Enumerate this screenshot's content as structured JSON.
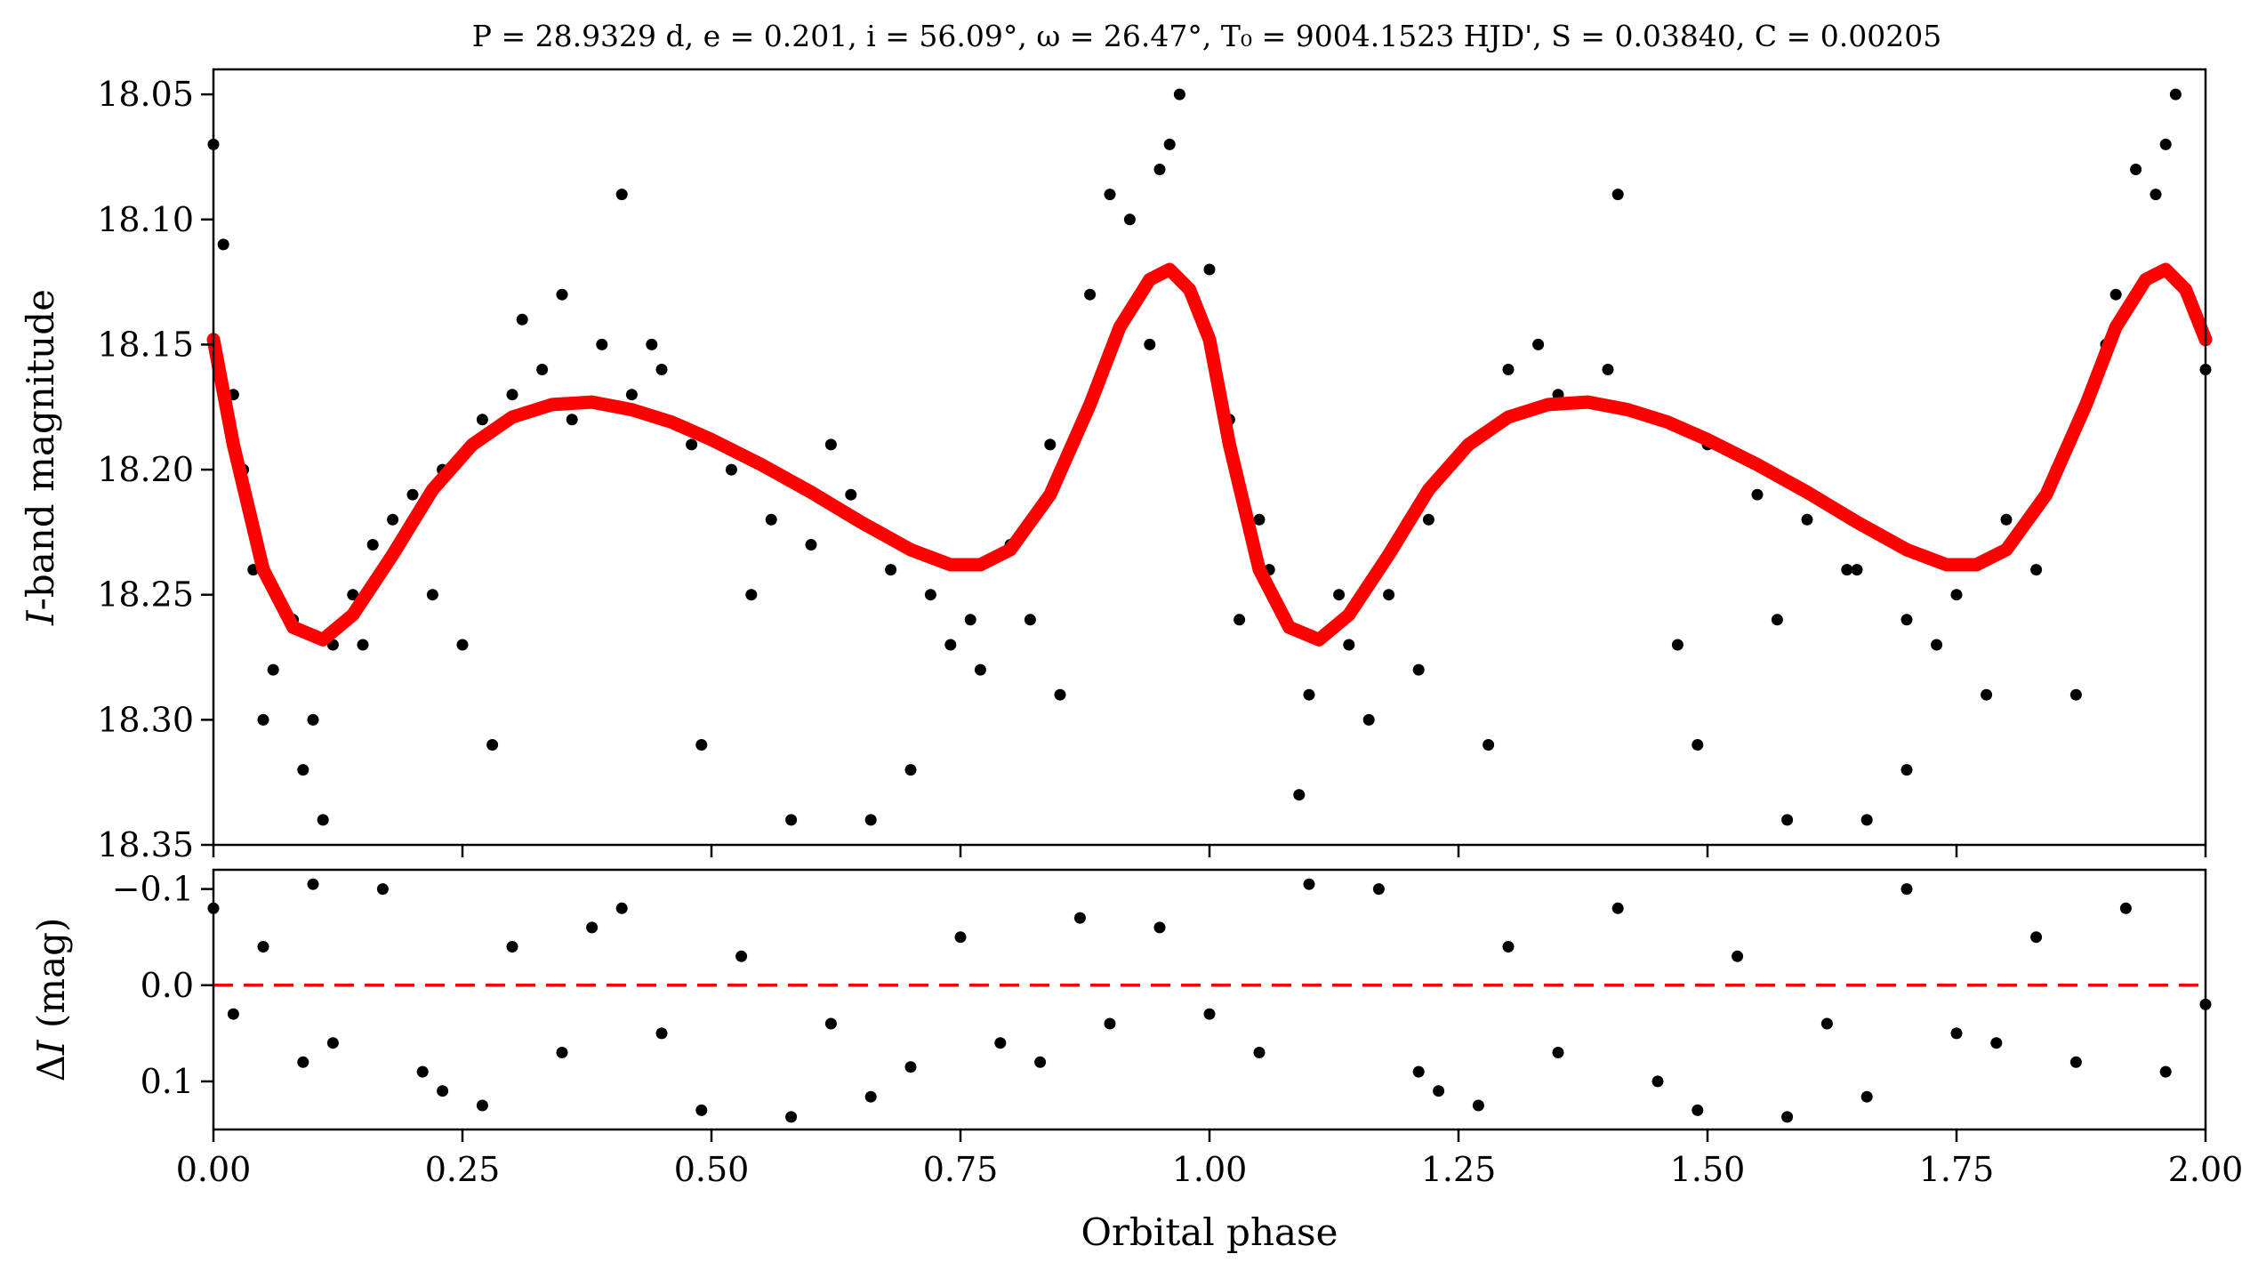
{
  "chart_data": [
    {
      "panel": "light-curve",
      "type": "scatter",
      "title": "P = 28.9329 d, e = 0.201, i = 56.09°, ω = 26.47°, T₀ = 9004.1523 HJD', S = 0.03840, C = 0.00205",
      "xlabel": "",
      "ylabel": "I-band magnitude",
      "xlim": [
        0.0,
        2.0
      ],
      "ylim": [
        18.35,
        18.04
      ],
      "y_inverted": true,
      "xticks": [
        0.0,
        0.25,
        0.5,
        0.75,
        1.0,
        1.25,
        1.5,
        1.75,
        2.0
      ],
      "yticks": [
        18.05,
        18.1,
        18.15,
        18.2,
        18.25,
        18.3,
        18.35
      ],
      "ytick_labels": [
        "18.05",
        "18.10",
        "18.15",
        "18.20",
        "18.25",
        "18.30",
        "18.35"
      ],
      "grid": false,
      "series": [
        {
          "kind": "scatter",
          "color": "#000000",
          "x": [
            0.0,
            0.01,
            0.02,
            0.04,
            0.06,
            0.08,
            0.1,
            0.12,
            0.14,
            0.16,
            0.18,
            0.2,
            0.23,
            0.27,
            0.3,
            0.33,
            0.36,
            0.39,
            0.42,
            0.45,
            0.48,
            0.52,
            0.56,
            0.6,
            0.64,
            0.68,
            0.72,
            0.76,
            0.8,
            0.84,
            0.88,
            0.92,
            0.95,
            0.97,
            1.0,
            1.02,
            1.06,
            1.1,
            1.14,
            1.18,
            1.22,
            1.26,
            1.3,
            1.35,
            1.4,
            1.45,
            1.5,
            1.55,
            1.6,
            1.65,
            1.7,
            1.75,
            1.8,
            1.85,
            1.9,
            1.95,
            1.97,
            2.0,
            0.03,
            0.09,
            0.11,
            0.25,
            0.28,
            0.35,
            0.41,
            0.49,
            0.58,
            0.66,
            0.7,
            0.77,
            0.85,
            0.9,
            0.96,
            1.03,
            1.09,
            1.16,
            1.28,
            1.41,
            1.49,
            1.58,
            1.66,
            1.7,
            1.78,
            1.87,
            1.93,
            1.96,
            0.05,
            0.15,
            0.22,
            0.31,
            0.44,
            0.54,
            0.62,
            0.74,
            0.82,
            0.94,
            1.05,
            1.13,
            1.21,
            1.33,
            1.47,
            1.57,
            1.64,
            1.73,
            1.83,
            1.91
          ],
          "y": [
            18.07,
            18.11,
            18.17,
            18.24,
            18.28,
            18.26,
            18.3,
            18.27,
            18.25,
            18.23,
            18.22,
            18.21,
            18.2,
            18.18,
            18.17,
            18.16,
            18.18,
            18.15,
            18.17,
            18.16,
            18.19,
            18.2,
            18.22,
            18.23,
            18.21,
            18.24,
            18.25,
            18.26,
            18.23,
            18.19,
            18.13,
            18.1,
            18.08,
            18.05,
            18.12,
            18.18,
            18.24,
            18.29,
            18.27,
            18.25,
            18.22,
            18.19,
            18.16,
            18.17,
            18.16,
            18.18,
            18.19,
            18.21,
            18.22,
            18.24,
            18.26,
            18.25,
            18.22,
            18.2,
            18.15,
            18.09,
            18.05,
            18.16,
            18.2,
            18.32,
            18.34,
            18.27,
            18.31,
            18.13,
            18.09,
            18.31,
            18.34,
            18.34,
            18.32,
            18.28,
            18.29,
            18.09,
            18.07,
            18.26,
            18.33,
            18.3,
            18.31,
            18.09,
            18.31,
            18.34,
            18.34,
            18.32,
            18.29,
            18.29,
            18.08,
            18.07,
            18.3,
            18.27,
            18.25,
            18.14,
            18.15,
            18.25,
            18.19,
            18.27,
            18.26,
            18.15,
            18.22,
            18.25,
            18.28,
            18.15,
            18.27,
            18.26,
            18.24,
            18.27,
            18.24,
            18.13
          ]
        },
        {
          "kind": "line",
          "color": "#ff0000",
          "x": [
            0.0,
            0.02,
            0.05,
            0.08,
            0.11,
            0.14,
            0.18,
            0.22,
            0.26,
            0.3,
            0.34,
            0.38,
            0.42,
            0.46,
            0.5,
            0.55,
            0.6,
            0.65,
            0.7,
            0.74,
            0.77,
            0.8,
            0.84,
            0.88,
            0.91,
            0.94,
            0.96,
            0.98,
            1.0,
            1.02,
            1.05,
            1.08,
            1.11,
            1.14,
            1.18,
            1.22,
            1.26,
            1.3,
            1.34,
            1.38,
            1.42,
            1.46,
            1.5,
            1.55,
            1.6,
            1.65,
            1.7,
            1.74,
            1.77,
            1.8,
            1.84,
            1.88,
            1.91,
            1.94,
            1.96,
            1.98,
            2.0
          ],
          "y": [
            18.148,
            18.19,
            18.24,
            18.263,
            18.268,
            18.258,
            18.234,
            18.208,
            18.19,
            18.179,
            18.174,
            18.173,
            18.176,
            18.181,
            18.188,
            18.198,
            18.209,
            18.221,
            18.232,
            18.238,
            18.238,
            18.232,
            18.21,
            18.174,
            18.143,
            18.124,
            18.12,
            18.128,
            18.148,
            18.19,
            18.24,
            18.263,
            18.268,
            18.258,
            18.234,
            18.208,
            18.19,
            18.179,
            18.174,
            18.173,
            18.176,
            18.181,
            18.188,
            18.198,
            18.209,
            18.221,
            18.232,
            18.238,
            18.238,
            18.232,
            18.21,
            18.174,
            18.143,
            18.124,
            18.12,
            18.128,
            18.148
          ]
        }
      ]
    },
    {
      "panel": "residuals",
      "type": "scatter",
      "title": "",
      "xlabel": "Orbital phase",
      "ylabel": "ΔI (mag)",
      "xlim": [
        0.0,
        2.0
      ],
      "ylim": [
        0.15,
        -0.12
      ],
      "y_inverted": true,
      "xticks": [
        0.0,
        0.25,
        0.5,
        0.75,
        1.0,
        1.25,
        1.5,
        1.75,
        2.0
      ],
      "xtick_labels": [
        "0.00",
        "0.25",
        "0.50",
        "0.75",
        "1.00",
        "1.25",
        "1.50",
        "1.75",
        "2.00"
      ],
      "yticks": [
        -0.1,
        0.0,
        0.1
      ],
      "ytick_labels": [
        "−0.1",
        "0.0",
        "0.1"
      ],
      "grid": false,
      "series": [
        {
          "kind": "scatter",
          "color": "#000000",
          "x": [
            0.0,
            0.02,
            0.05,
            0.09,
            0.1,
            0.12,
            0.17,
            0.21,
            0.23,
            0.27,
            0.3,
            0.35,
            0.38,
            0.41,
            0.45,
            0.49,
            0.53,
            0.58,
            0.62,
            0.66,
            0.7,
            0.75,
            0.79,
            0.83,
            0.87,
            0.9,
            0.95,
            1.0,
            1.05,
            1.1,
            1.17,
            1.21,
            1.23,
            1.27,
            1.3,
            1.35,
            1.41,
            1.45,
            1.49,
            1.53,
            1.58,
            1.62,
            1.66,
            1.7,
            1.75,
            1.79,
            1.83,
            1.87,
            1.92,
            1.96,
            2.0
          ],
          "y": [
            -0.08,
            0.03,
            -0.04,
            0.08,
            -0.105,
            0.06,
            -0.1,
            0.09,
            0.11,
            0.125,
            -0.04,
            0.07,
            -0.06,
            -0.08,
            0.05,
            0.13,
            -0.03,
            0.137,
            0.04,
            0.116,
            0.085,
            -0.05,
            0.06,
            0.08,
            -0.07,
            0.04,
            -0.06,
            0.03,
            0.07,
            -0.105,
            -0.1,
            0.09,
            0.11,
            0.125,
            -0.04,
            0.07,
            -0.08,
            0.1,
            0.13,
            -0.03,
            0.137,
            0.04,
            0.116,
            -0.1,
            0.05,
            0.06,
            -0.05,
            0.08,
            -0.08,
            0.09,
            0.02
          ]
        },
        {
          "kind": "line",
          "style": "dashed",
          "color": "#ff0000",
          "x": [
            0.0,
            2.0
          ],
          "y": [
            0.0,
            0.0
          ]
        }
      ]
    }
  ]
}
